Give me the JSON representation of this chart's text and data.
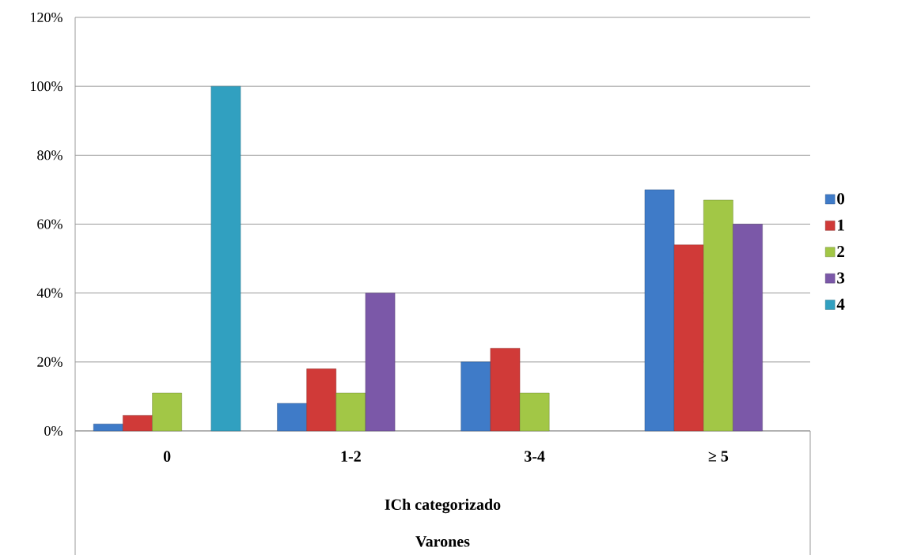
{
  "chart_data": {
    "type": "bar",
    "xlabel": "ICh categorizado",
    "annotations": [
      "Varones"
    ],
    "categories": [
      "0",
      "1-2",
      "3-4",
      "≥ 5"
    ],
    "series": [
      {
        "name": "0",
        "color": "#3f7bc8",
        "values": [
          2,
          8,
          20,
          70
        ]
      },
      {
        "name": "1",
        "color": "#d03a38",
        "values": [
          4.5,
          18,
          24,
          54
        ]
      },
      {
        "name": "2",
        "color": "#a2c746",
        "values": [
          11,
          11,
          11,
          67
        ]
      },
      {
        "name": "3",
        "color": "#7b58a8",
        "values": [
          null,
          40,
          null,
          60
        ]
      },
      {
        "name": "4",
        "color": "#31a0c0",
        "values": [
          100,
          null,
          null,
          null
        ]
      }
    ],
    "ylim": [
      0,
      120
    ],
    "yticks": [
      {
        "value": 0,
        "label": "0%"
      },
      {
        "value": 20,
        "label": "20%"
      },
      {
        "value": 40,
        "label": "40%"
      },
      {
        "value": 60,
        "label": "60%"
      },
      {
        "value": 80,
        "label": "80%"
      },
      {
        "value": 100,
        "label": "100%"
      },
      {
        "value": 120,
        "label": "120%"
      }
    ],
    "grid": "y",
    "legend": "right"
  }
}
